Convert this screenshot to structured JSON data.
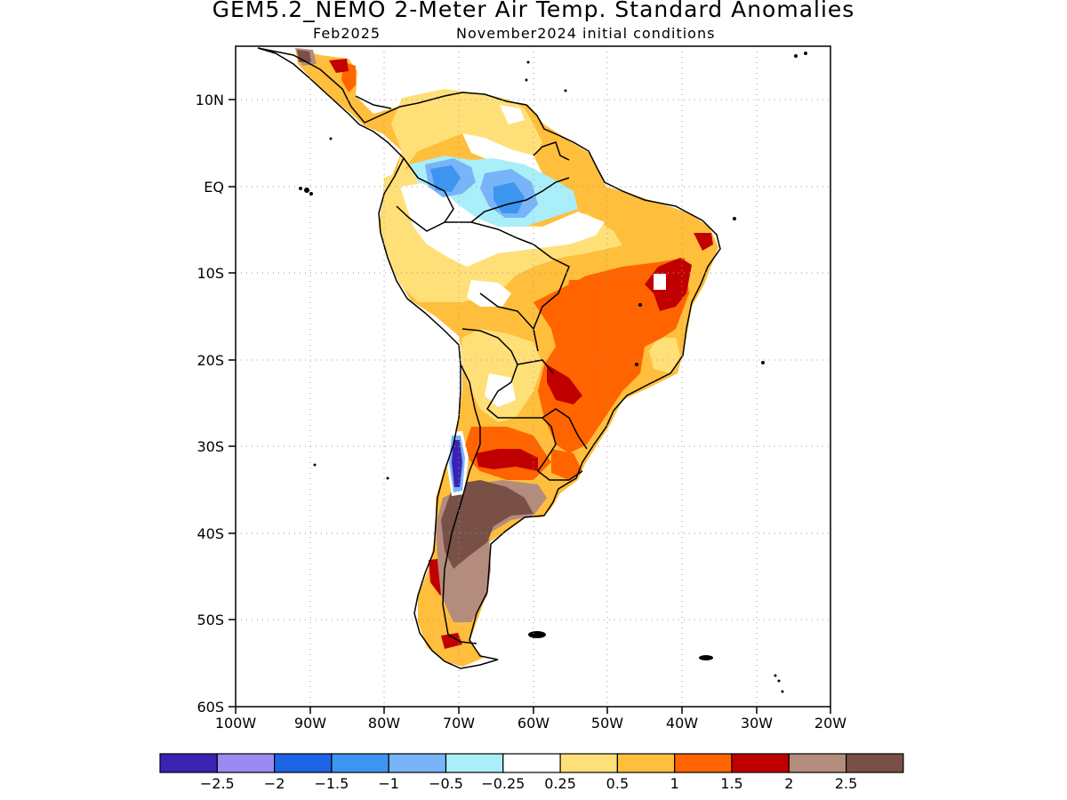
{
  "title": "GEM5.2_NEMO 2-Meter Air Temp. Standard Anomalies",
  "subtitle_left": "Feb2025",
  "subtitle_right": "November2024 initial conditions",
  "map": {
    "lon_range": [
      -100,
      -20
    ],
    "lat_range": [
      -60,
      5
    ],
    "lat_labels": [
      "10N",
      "EQ",
      "10S",
      "20S",
      "30S",
      "40S",
      "50S",
      "60S"
    ],
    "lon_labels": [
      "100W",
      "90W",
      "80W",
      "70W",
      "60W",
      "50W",
      "40W",
      "30W",
      "20W"
    ],
    "grid": "dotted"
  },
  "colorbar": {
    "colors": [
      "#3b22b4",
      "#9a8af2",
      "#1e64e6",
      "#3c96f0",
      "#78b4f8",
      "#aaeefa",
      "#ffffff",
      "#ffe078",
      "#ffbe3c",
      "#ff6400",
      "#c00000",
      "#b48c7e",
      "#785046"
    ],
    "labels": [
      "-2.5",
      "-2",
      "-1.5",
      "-1",
      "-0.5",
      "-0.25",
      "0.25",
      "0.5",
      "1",
      "1.5",
      "2",
      "2.5"
    ]
  }
}
